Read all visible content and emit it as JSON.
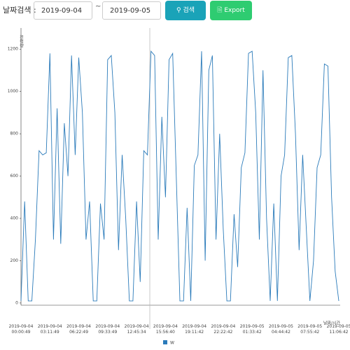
{
  "ui": {
    "search_label": "날짜검색 :",
    "start_date": "2019-09-04",
    "separator": "~",
    "end_date": "2019-09-05",
    "search_button": "검색",
    "export_button": "Export"
  },
  "chart_data": {
    "type": "line",
    "y_label": "전력량",
    "x_label": "날짜/시간",
    "categories": [
      "2019-09-04 00:00:49",
      null,
      null,
      null,
      null,
      null,
      null,
      null,
      "2019-09-04 03:11:49",
      null,
      null,
      null,
      null,
      null,
      null,
      null,
      "2019-09-04 06:22:49",
      null,
      null,
      null,
      null,
      null,
      null,
      null,
      "2019-09-04 09:33:49",
      null,
      null,
      null,
      null,
      null,
      null,
      null,
      "2019-09-04 12:45:34",
      null,
      null,
      null,
      null,
      null,
      null,
      null,
      "2019-09-04 15:56:40",
      null,
      null,
      null,
      null,
      null,
      null,
      null,
      "2019-09-04 19:11:42",
      null,
      null,
      null,
      null,
      null,
      null,
      null,
      "2019-09-04 22:22:42",
      null,
      null,
      null,
      null,
      null,
      null,
      null,
      "2019-09-05 01:33:42",
      null,
      null,
      null,
      null,
      null,
      null,
      null,
      "2019-09-05 04:44:42",
      null,
      null,
      null,
      null,
      null,
      null,
      null,
      "2019-09-05 07:55:42",
      null,
      null,
      null,
      null,
      null,
      null,
      null,
      "2019-09-05 11:06:42"
    ],
    "series": [
      {
        "name": "W",
        "color": "#2b7bba",
        "values": [
          10,
          480,
          10,
          10,
          300,
          720,
          700,
          710,
          1180,
          300,
          920,
          280,
          850,
          600,
          1170,
          700,
          1160,
          900,
          300,
          480,
          10,
          10,
          470,
          300,
          1150,
          1170,
          900,
          250,
          700,
          400,
          10,
          10,
          480,
          100,
          720,
          700,
          1190,
          1170,
          300,
          880,
          500,
          1150,
          1180,
          600,
          10,
          10,
          450,
          10,
          650,
          700,
          1190,
          200,
          1100,
          1170,
          300,
          800,
          350,
          10,
          10,
          420,
          170,
          640,
          710,
          1180,
          1190,
          900,
          300,
          1100,
          400,
          10,
          470,
          10,
          600,
          700,
          1160,
          1170,
          800,
          250,
          700,
          350,
          10,
          200,
          640,
          700,
          1130,
          1120,
          500,
          150,
          10
        ]
      }
    ],
    "ylim": [
      -50,
      1300
    ],
    "yticks": [
      0,
      200,
      400,
      600,
      800,
      1000,
      1200
    ],
    "legend": "bottom"
  }
}
